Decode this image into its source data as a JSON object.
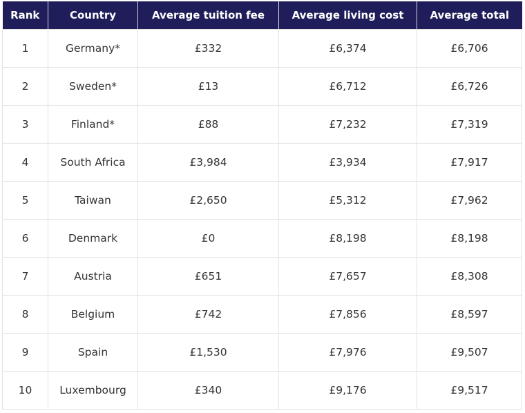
{
  "table": {
    "headers": [
      "Rank",
      "Country",
      "Average tuition fee",
      "Average living cost",
      "Average total"
    ],
    "rows": [
      [
        "1",
        "Germany*",
        "£332",
        "£6,374",
        "£6,706"
      ],
      [
        "2",
        "Sweden*",
        "£13",
        "£6,712",
        "£6,726"
      ],
      [
        "3",
        "Finland*",
        "£88",
        "£7,232",
        "£7,319"
      ],
      [
        "4",
        "South Africa",
        "£3,984",
        "£3,934",
        "£7,917"
      ],
      [
        "5",
        "Taiwan",
        "£2,650",
        "£5,312",
        "£7,962"
      ],
      [
        "6",
        "Denmark",
        "£0",
        "£8,198",
        "£8,198"
      ],
      [
        "7",
        "Austria",
        "£651",
        "£7,657",
        "£8,308"
      ],
      [
        "8",
        "Belgium",
        "£742",
        "£7,856",
        "£8,597"
      ],
      [
        "9",
        "Spain",
        "£1,530",
        "£7,976",
        "£9,507"
      ],
      [
        "10",
        "Luxembourg",
        "£340",
        "£9,176",
        "£9,517"
      ]
    ]
  },
  "colors": {
    "header_bg": "#1f1d5a",
    "header_text": "#ffffff"
  }
}
